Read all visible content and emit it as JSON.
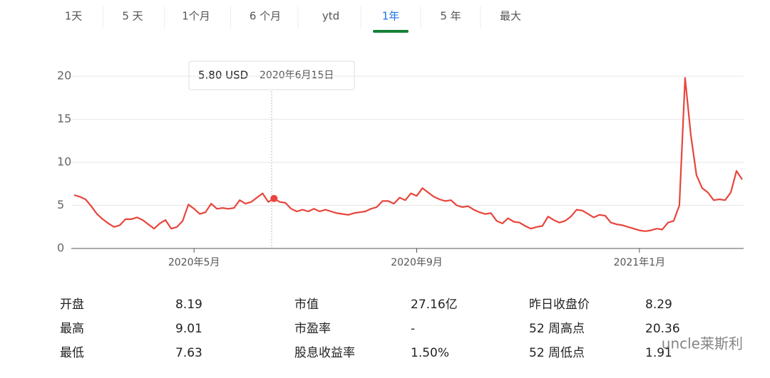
{
  "tabs": {
    "items": [
      "1天",
      "5 天",
      "1个月",
      "6 个月",
      "ytd",
      "1年",
      "5 年",
      "最大"
    ],
    "active": "1年"
  },
  "chart_data": {
    "type": "line",
    "color": "#e8453c",
    "categories": [
      null,
      null,
      null,
      null,
      null,
      null,
      null,
      null,
      null,
      null,
      null,
      null,
      null,
      null,
      null,
      null,
      null,
      null,
      null,
      null,
      null,
      "2020年5月",
      null,
      null,
      null,
      null,
      null,
      null,
      null,
      null,
      null,
      null,
      null,
      null,
      null,
      null,
      null,
      null,
      null,
      null,
      null,
      null,
      null,
      null,
      null,
      null,
      null,
      null,
      null,
      null,
      null,
      null,
      null,
      null,
      null,
      null,
      null,
      null,
      null,
      null,
      "2020年9月",
      null,
      null,
      null,
      null,
      null,
      null,
      null,
      null,
      null,
      null,
      null,
      null,
      null,
      null,
      null,
      null,
      null,
      null,
      null,
      null,
      null,
      null,
      null,
      null,
      null,
      null,
      null,
      null,
      null,
      null,
      null,
      null,
      null,
      null,
      null,
      null,
      null,
      null,
      "2021年1月",
      null,
      null,
      null,
      null,
      null,
      null,
      null,
      null,
      null,
      null,
      null,
      null,
      null,
      null,
      null,
      null,
      null,
      null
    ],
    "values": [
      6.2,
      6.0,
      5.7,
      4.9,
      4.0,
      3.4,
      2.9,
      2.5,
      2.7,
      3.4,
      3.4,
      3.6,
      3.3,
      2.8,
      2.3,
      2.9,
      3.3,
      2.3,
      2.5,
      3.2,
      5.1,
      4.6,
      4.0,
      4.2,
      5.2,
      4.6,
      4.7,
      4.6,
      4.7,
      5.6,
      5.2,
      5.4,
      5.9,
      6.4,
      5.4,
      5.8,
      5.4,
      5.3,
      4.6,
      4.3,
      4.5,
      4.3,
      4.6,
      4.3,
      4.5,
      4.3,
      4.1,
      4.0,
      3.9,
      4.1,
      4.2,
      4.3,
      4.6,
      4.8,
      5.5,
      5.5,
      5.2,
      5.9,
      5.6,
      6.4,
      6.1,
      7.0,
      6.5,
      6.0,
      5.7,
      5.5,
      5.6,
      5.0,
      4.8,
      4.9,
      4.5,
      4.2,
      4.0,
      4.1,
      3.2,
      2.9,
      3.5,
      3.1,
      3.0,
      2.6,
      2.3,
      2.5,
      2.6,
      3.7,
      3.3,
      3.0,
      3.2,
      3.7,
      4.5,
      4.4,
      4.0,
      3.6,
      3.9,
      3.8,
      3.0,
      2.8,
      2.7,
      2.5,
      2.3,
      2.1,
      2.0,
      2.1,
      2.3,
      2.2,
      3.0,
      3.2,
      5.0,
      19.8,
      13.2,
      8.5,
      7.0,
      6.5,
      5.6,
      5.7,
      5.6,
      6.5,
      9.0,
      8.0
    ],
    "ylim": [
      0,
      20
    ],
    "yticks": [
      0,
      5,
      10,
      15,
      20
    ],
    "grid": true,
    "tooltip": {
      "value": 5.8,
      "label": "5.80 USD",
      "date": "2020年6月15日"
    }
  },
  "stats": [
    [
      [
        "开盘",
        "8.19"
      ],
      [
        "最高",
        "9.01"
      ],
      [
        "最低",
        "7.63"
      ]
    ],
    [
      [
        "市值",
        "27.16亿"
      ],
      [
        "市盈率",
        "-"
      ],
      [
        "股息收益率",
        "1.50%"
      ]
    ],
    [
      [
        "昨日收盘价",
        "8.29"
      ],
      [
        "52 周高点",
        "20.36"
      ],
      [
        "52 周低点",
        "1.91"
      ]
    ]
  ],
  "watermark": "uncle莱斯利"
}
